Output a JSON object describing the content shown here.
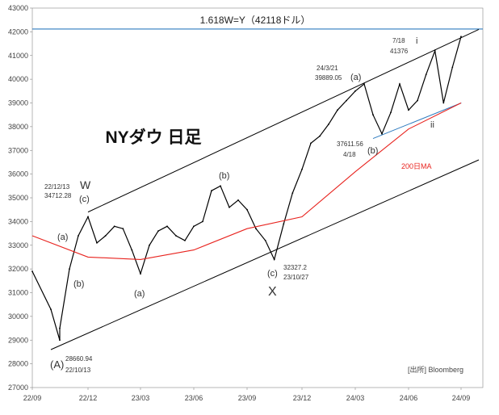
{
  "chart_data": {
    "type": "line",
    "title": "NYダウ 日足",
    "source": "[出所] Bloomberg",
    "target_label": "1.618W=Y（42118ドル）",
    "ma_label": "200日MA",
    "xlabel": "",
    "ylabel": "",
    "ylim": [
      27000,
      43000
    ],
    "yticks": [
      27000,
      28000,
      29000,
      30000,
      31000,
      32000,
      33000,
      34000,
      35000,
      36000,
      37000,
      38000,
      39000,
      40000,
      41000,
      42000,
      43000
    ],
    "xticks": [
      "22/09",
      "22/12",
      "23/03",
      "23/06",
      "23/09",
      "23/12",
      "24/03",
      "24/06",
      "24/09"
    ],
    "grid": false,
    "colors": {
      "price": "#000000",
      "ma": "#e8231e",
      "channel": "#000000",
      "target_line": "#2e7bbf",
      "support_line": "#2e7bbf",
      "axis_text": "#444444"
    },
    "series": [
      {
        "name": "",
        "x": [
          "22/09",
          "22/10",
          "22/10",
          "22/10",
          "22/11",
          "22/11",
          "22/12",
          "22/12",
          "23/01",
          "23/01",
          "23/02",
          "23/02",
          "23/03",
          "23/03",
          "23/04",
          "23/04",
          "23/05",
          "23/05",
          "23/06",
          "23/06",
          "23/07",
          "23/07",
          "23/08",
          "23/08",
          "23/09",
          "23/09",
          "23/10",
          "23/10",
          "23/11",
          "23/11",
          "23/12",
          "23/12",
          "24/01",
          "24/01",
          "24/02",
          "24/02",
          "24/03",
          "24/03",
          "24/04",
          "24/04",
          "24/05",
          "24/05",
          "24/06",
          "24/06",
          "24/07",
          "24/07",
          "24/08",
          "24/08",
          "24/09"
        ],
        "values": [
          31900,
          30300,
          29000,
          29500,
          32000,
          33400,
          34200,
          33100,
          33400,
          33800,
          33700,
          32800,
          31800,
          33000,
          33600,
          33800,
          33400,
          33200,
          33800,
          34000,
          35300,
          35500,
          34600,
          34900,
          34500,
          33700,
          33200,
          32400,
          33900,
          35200,
          36200,
          37300,
          37600,
          38100,
          38700,
          39100,
          39500,
          39800,
          38500,
          37700,
          38600,
          39800,
          38700,
          39100,
          40200,
          41200,
          39000,
          40500,
          41800
        ]
      },
      {
        "name": "",
        "x": [
          "22/09",
          "22/12",
          "23/03",
          "23/06",
          "23/09",
          "23/12",
          "24/03",
          "24/06",
          "24/09"
        ],
        "values": [
          33400,
          32500,
          32400,
          32800,
          33700,
          34200,
          36100,
          37900,
          39000
        ]
      }
    ],
    "annotations": [
      {
        "text": "(A)",
        "x": "22/10",
        "y": 28660
      },
      {
        "text": "28660.94",
        "x": "22/10",
        "y": 28660
      },
      {
        "text": "22/10/13",
        "x": "22/10",
        "y": 28660
      },
      {
        "text": "(a)",
        "x": "22/11",
        "y": 32700
      },
      {
        "text": "(b)",
        "x": "22/11",
        "y": 32300
      },
      {
        "text": "(c)",
        "x": "22/12",
        "y": 34700
      },
      {
        "text": "W",
        "x": "22/12",
        "y": 34700
      },
      {
        "text": "22/12/13",
        "x": "22/12",
        "y": 34712
      },
      {
        "text": "34712.28",
        "x": "22/12",
        "y": 34712
      },
      {
        "text": "(a)",
        "x": "23/03",
        "y": 31800
      },
      {
        "text": "(b)",
        "x": "23/07",
        "y": 35600
      },
      {
        "text": "(c)",
        "x": "23/10",
        "y": 32327
      },
      {
        "text": "X",
        "x": "23/10",
        "y": 32327
      },
      {
        "text": "32327.2",
        "x": "23/10",
        "y": 32327
      },
      {
        "text": "23/10/27",
        "x": "23/10",
        "y": 32327
      },
      {
        "text": "24/3/21",
        "x": "24/03",
        "y": 39889
      },
      {
        "text": "39889.05",
        "x": "24/03",
        "y": 39889
      },
      {
        "text": "(a)",
        "x": "24/03",
        "y": 39889
      },
      {
        "text": "(b)",
        "x": "24/04",
        "y": 37611
      },
      {
        "text": "37611.56",
        "x": "24/04",
        "y": 37611
      },
      {
        "text": "4/18",
        "x": "24/04",
        "y": 37611
      },
      {
        "text": "7/18",
        "x": "24/07",
        "y": 41376
      },
      {
        "text": "41376",
        "x": "24/07",
        "y": 41376
      },
      {
        "text": "i",
        "x": "24/07",
        "y": 41376
      },
      {
        "text": "ii",
        "x": "24/08",
        "y": 38500
      }
    ],
    "reference_lines": [
      {
        "kind": "horizontal",
        "y": 42118
      },
      {
        "kind": "channel-upper",
        "from": {
          "x": "22/12",
          "y": 34400
        },
        "to": {
          "x": "24/09",
          "y": 42100
        }
      },
      {
        "kind": "channel-lower",
        "from": {
          "x": "22/10",
          "y": 28600
        },
        "to": {
          "x": "24/09",
          "y": 36600
        }
      },
      {
        "kind": "support",
        "from": {
          "x": "24/04",
          "y": 37500
        },
        "to": {
          "x": "24/08",
          "y": 39000
        }
      }
    ]
  }
}
